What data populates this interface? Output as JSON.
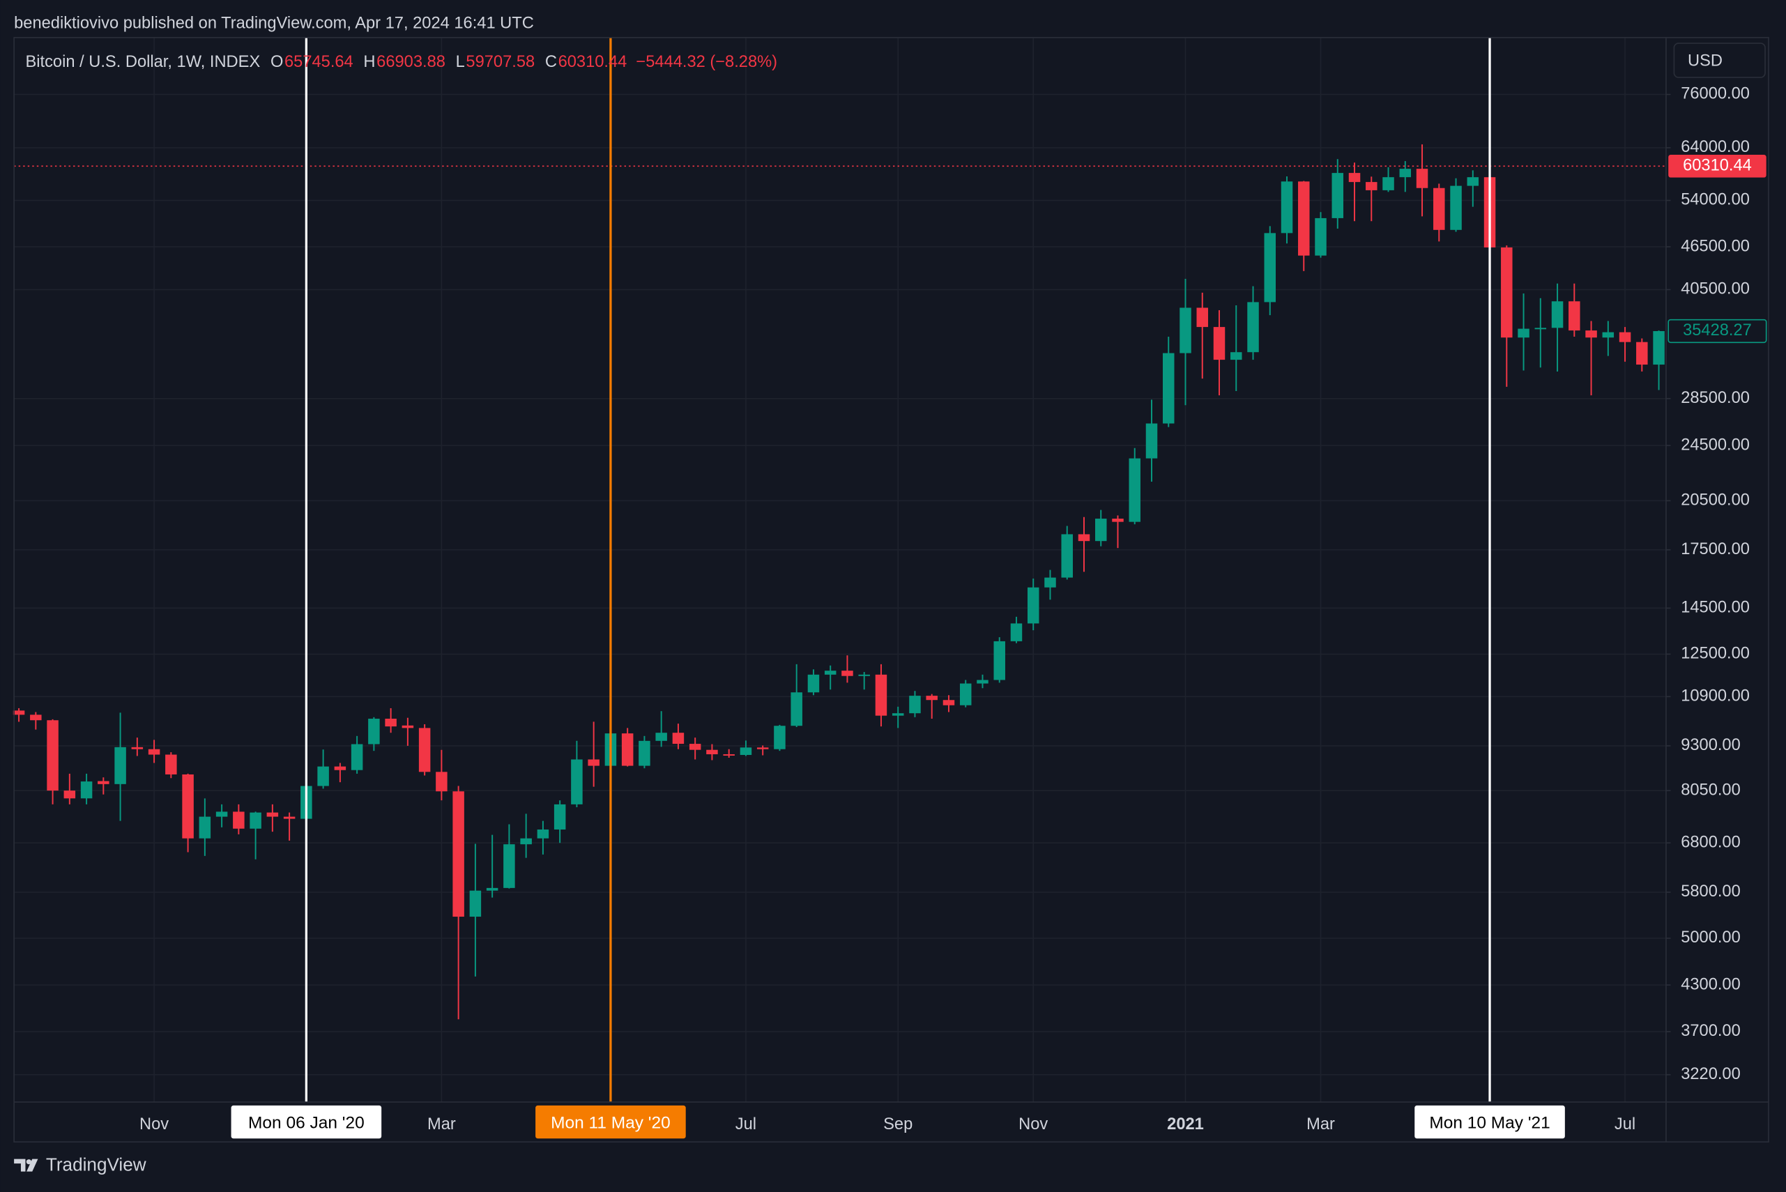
{
  "header": "benediktiovivo published on TradingView.com, Apr 17, 2024 16:41 UTC",
  "branding": "TradingView",
  "currency": "USD",
  "chart_data": {
    "type": "candlestick",
    "log_scale": true,
    "grid": true,
    "up_color": "#089981",
    "down_color": "#f23645",
    "legend": {
      "symbol": "Bitcoin / U.S. Dollar, 1W, INDEX",
      "fields": [
        {
          "key": "O",
          "value": 65745.64
        },
        {
          "key": "H",
          "value": 66903.88
        },
        {
          "key": "L",
          "value": 59707.58
        },
        {
          "key": "C",
          "value": 60310.44
        }
      ],
      "change": "−5444.32 (−8.28%)"
    },
    "last_price_color": "#f23645",
    "ylim": [
      2948,
      91300
    ],
    "yticks": [
      {
        "value": 76000,
        "label": "76000.00"
      },
      {
        "value": 64000,
        "label": "64000.00"
      },
      {
        "value": 54000,
        "label": "54000.00"
      },
      {
        "value": 46500,
        "label": "46500.00"
      },
      {
        "value": 40500,
        "label": "40500.00"
      },
      {
        "value": 28500,
        "label": "28500.00"
      },
      {
        "value": 24500,
        "label": "24500.00"
      },
      {
        "value": 20500,
        "label": "20500.00"
      },
      {
        "value": 17500,
        "label": "17500.00"
      },
      {
        "value": 14500,
        "label": "14500.00"
      },
      {
        "value": 12500,
        "label": "12500.00"
      },
      {
        "value": 10900,
        "label": "10900.00"
      },
      {
        "value": 9300,
        "label": "9300.00"
      },
      {
        "value": 8050,
        "label": "8050.00"
      },
      {
        "value": 6800,
        "label": "6800.00"
      },
      {
        "value": 5800,
        "label": "5800.00"
      },
      {
        "value": 5000,
        "label": "5000.00"
      },
      {
        "value": 4300,
        "label": "4300.00"
      },
      {
        "value": 3700,
        "label": "3700.00"
      },
      {
        "value": 3220,
        "label": "3220.00"
      }
    ],
    "xlim": [
      "2019-09-07",
      "2021-07-22"
    ],
    "xticks": [
      {
        "value": "2019-11-04",
        "label": "Nov"
      },
      {
        "value": "2020-03-02",
        "label": "Mar"
      },
      {
        "value": "2020-07-06",
        "label": "Jul"
      },
      {
        "value": "2020-09-07",
        "label": "Sep"
      },
      {
        "value": "2020-11-02",
        "label": "Nov"
      },
      {
        "value": "2021-01-04",
        "label": "2021"
      },
      {
        "value": "2021-03-01",
        "label": "Mar"
      },
      {
        "value": "2021-07-05",
        "label": "Jul"
      }
    ],
    "markers": [
      {
        "x": "2020-01-06",
        "label": "Mon 06 Jan '20",
        "color": "#ffffff"
      },
      {
        "x": "2020-05-11",
        "label": "Mon 11 May '20",
        "color": "#f57c00"
      },
      {
        "x": "2021-05-10",
        "label": "Mon 10 May '21",
        "color": "#ffffff"
      }
    ],
    "x": [
      "2019-09-09",
      "2019-09-16",
      "2019-09-23",
      "2019-09-30",
      "2019-10-07",
      "2019-10-14",
      "2019-10-21",
      "2019-10-28",
      "2019-11-04",
      "2019-11-11",
      "2019-11-18",
      "2019-11-25",
      "2019-12-02",
      "2019-12-09",
      "2019-12-16",
      "2019-12-23",
      "2019-12-30",
      "2020-01-06",
      "2020-01-13",
      "2020-01-20",
      "2020-01-27",
      "2020-02-03",
      "2020-02-10",
      "2020-02-17",
      "2020-02-24",
      "2020-03-02",
      "2020-03-09",
      "2020-03-16",
      "2020-03-23",
      "2020-03-30",
      "2020-04-06",
      "2020-04-13",
      "2020-04-20",
      "2020-04-27",
      "2020-05-04",
      "2020-05-11",
      "2020-05-18",
      "2020-05-25",
      "2020-06-01",
      "2020-06-08",
      "2020-06-15",
      "2020-06-22",
      "2020-06-29",
      "2020-07-06",
      "2020-07-13",
      "2020-07-20",
      "2020-07-27",
      "2020-08-03",
      "2020-08-10",
      "2020-08-17",
      "2020-08-24",
      "2020-08-31",
      "2020-09-07",
      "2020-09-14",
      "2020-09-21",
      "2020-09-28",
      "2020-10-05",
      "2020-10-12",
      "2020-10-19",
      "2020-10-26",
      "2020-11-02",
      "2020-11-09",
      "2020-11-16",
      "2020-11-23",
      "2020-11-30",
      "2020-12-07",
      "2020-12-14",
      "2020-12-21",
      "2020-12-28",
      "2021-01-04",
      "2021-01-11",
      "2021-01-18",
      "2021-01-25",
      "2021-02-01",
      "2021-02-08",
      "2021-02-15",
      "2021-02-22",
      "2021-03-01",
      "2021-03-08",
      "2021-03-15",
      "2021-03-22",
      "2021-03-29",
      "2021-04-05",
      "2021-04-12",
      "2021-04-19",
      "2021-04-26",
      "2021-05-03",
      "2021-05-10",
      "2021-05-17",
      "2021-05-24",
      "2021-05-31",
      "2021-06-07",
      "2021-06-14",
      "2021-06-21",
      "2021-06-28",
      "2021-07-05",
      "2021-07-12",
      "2021-07-19"
    ],
    "open": [
      10420,
      10280,
      10100,
      8050,
      7850,
      8300,
      8220,
      9260,
      9200,
      9040,
      8480,
      6900,
      7400,
      7520,
      7120,
      7500,
      7400,
      7350,
      8170,
      8700,
      8600,
      9350,
      10150,
      9930,
      9850,
      8550,
      8030,
      5360,
      5830,
      5880,
      6770,
      6900,
      7100,
      7700,
      8900,
      8720,
      9680,
      8720,
      9450,
      9700,
      9360,
      9180,
      9050,
      9030,
      9250,
      9200,
      9920,
      11050,
      11700,
      11850,
      11650,
      11700,
      10250,
      10330,
      10930,
      10780,
      10600,
      11370,
      11500,
      13030,
      13800,
      15500,
      16000,
      18400,
      18000,
      19350,
      19150,
      23500,
      26300,
      33000,
      38200,
      35900,
      32300,
      33100,
      38900,
      48600,
      57400,
      45200,
      51000,
      59000,
      57300,
      55800,
      58200,
      59800,
      56200,
      49100,
      56600,
      58200,
      46400,
      34700,
      35700,
      35800,
      39000,
      35500,
      34700,
      35300,
      34200,
      31800
    ],
    "high": [
      10500,
      10370,
      10130,
      8500,
      8500,
      8400,
      10350,
      9550,
      9480,
      9110,
      8500,
      7850,
      7700,
      7700,
      7520,
      7700,
      7500,
      8450,
      9190,
      8800,
      9600,
      10200,
      10500,
      10180,
      9970,
      9180,
      8170,
      6780,
      6980,
      7220,
      7470,
      7300,
      7800,
      9450,
      10050,
      9950,
      9850,
      9600,
      10400,
      9990,
      9550,
      9350,
      9200,
      9460,
      9310,
      9950,
      12100,
      11900,
      12050,
      12450,
      11800,
      12100,
      10550,
      11100,
      10990,
      10950,
      11500,
      11700,
      13200,
      14100,
      15950,
      16400,
      18900,
      19450,
      19900,
      19550,
      24300,
      28400,
      34800,
      41930,
      40100,
      37900,
      38500,
      40950,
      49700,
      58350,
      57500,
      52000,
      61700,
      61000,
      58300,
      60100,
      61300,
      64700,
      57000,
      58000,
      59500,
      59600,
      46700,
      40000,
      39400,
      41300,
      41300,
      36600,
      36600,
      35900,
      34600,
      35500
    ],
    "low": [
      10050,
      9800,
      7700,
      7700,
      7700,
      7950,
      7300,
      9000,
      8800,
      8380,
      6600,
      6520,
      7150,
      6990,
      6450,
      7050,
      6850,
      7300,
      8100,
      8270,
      8500,
      9150,
      9700,
      9300,
      8450,
      7800,
      3850,
      4420,
      5700,
      5870,
      6480,
      6550,
      6800,
      7630,
      8150,
      8200,
      8700,
      8650,
      9270,
      9200,
      8900,
      8880,
      8950,
      9000,
      9020,
      9150,
      9880,
      10950,
      11150,
      11400,
      11150,
      9900,
      9850,
      10200,
      10150,
      10370,
      10530,
      11200,
      11400,
      12950,
      13500,
      14900,
      15900,
      16300,
      17700,
      17600,
      19000,
      21800,
      26000,
      27900,
      30400,
      28800,
      29200,
      32300,
      37300,
      47000,
      43000,
      44900,
      49300,
      50500,
      50500,
      55500,
      55500,
      51300,
      47300,
      48800,
      52900,
      44000,
      29600,
      31200,
      31500,
      31100,
      34800,
      28800,
      32700,
      32100,
      31100,
      29300
    ],
    "close": [
      10280,
      10100,
      8050,
      7850,
      8290,
      8220,
      9260,
      9200,
      9040,
      8480,
      6900,
      7400,
      7520,
      7120,
      7500,
      7400,
      7350,
      8170,
      8700,
      8600,
      9350,
      10150,
      9900,
      9850,
      8550,
      8030,
      5360,
      5830,
      5880,
      6770,
      6900,
      7100,
      7700,
      8900,
      8720,
      9680,
      8720,
      9450,
      9700,
      9360,
      9180,
      9050,
      9030,
      9250,
      9200,
      9920,
      11050,
      11700,
      11850,
      11650,
      11700,
      10250,
      10330,
      10930,
      10780,
      10600,
      11370,
      11500,
      13030,
      13800,
      15500,
      16000,
      18400,
      18000,
      19350,
      19150,
      23500,
      26300,
      33000,
      38200,
      35900,
      32300,
      33100,
      38900,
      48600,
      57400,
      45200,
      51000,
      59000,
      57300,
      55800,
      58200,
      59800,
      56200,
      49100,
      56600,
      58200,
      46400,
      34700,
      35700,
      35800,
      39000,
      35500,
      34700,
      35300,
      34200,
      31800,
      35428.27
    ]
  }
}
